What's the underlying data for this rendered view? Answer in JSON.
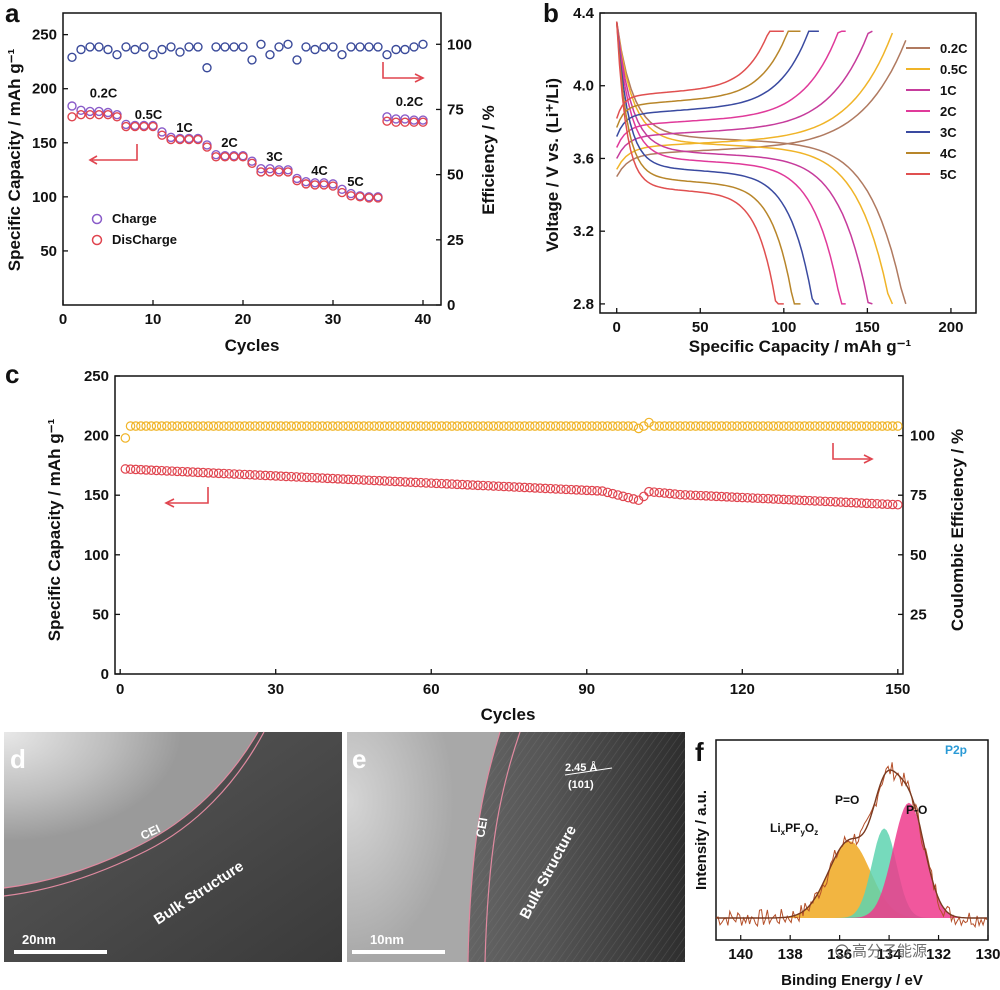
{
  "chart_data": [
    {
      "panel": "a",
      "type": "scatter",
      "xlabel": "Cycles",
      "ylabel": "Specific Capacity / mAh g⁻¹",
      "y2label": "Efficiency / %",
      "xlim": [
        0,
        42
      ],
      "ylim": [
        0,
        270
      ],
      "y2lim": [
        0,
        112
      ],
      "xticks": [
        0,
        10,
        20,
        30,
        40
      ],
      "yticks": [
        50,
        100,
        150,
        200,
        250
      ],
      "y2ticks": [
        0,
        25,
        50,
        75,
        100
      ],
      "legend": [
        "Charge",
        "DisCharge"
      ],
      "rate_labels": [
        {
          "text": "0.2C",
          "x": 4.5,
          "y": 192
        },
        {
          "text": "0.5C",
          "x": 9.5,
          "y": 172
        },
        {
          "text": "1C",
          "x": 13.5,
          "y": 160
        },
        {
          "text": "2C",
          "x": 18.5,
          "y": 146
        },
        {
          "text": "3C",
          "x": 23.5,
          "y": 133
        },
        {
          "text": "4C",
          "x": 28.5,
          "y": 120
        },
        {
          "text": "5C",
          "x": 32.5,
          "y": 110
        },
        {
          "text": "0.2C",
          "x": 38.5,
          "y": 184
        }
      ],
      "series": [
        {
          "name": "Charge",
          "color": "#8a5cc9",
          "x": [
            1,
            2,
            3,
            4,
            5,
            6,
            7,
            8,
            9,
            10,
            11,
            12,
            13,
            14,
            15,
            16,
            17,
            18,
            19,
            20,
            21,
            22,
            23,
            24,
            25,
            26,
            27,
            28,
            29,
            30,
            31,
            32,
            33,
            34,
            35,
            36,
            37,
            38,
            39,
            40
          ],
          "values": [
            184,
            180,
            179,
            179,
            178,
            176,
            167,
            166,
            166,
            166,
            160,
            155,
            154,
            154,
            154,
            148,
            139,
            138,
            138,
            138,
            133,
            126,
            126,
            125,
            125,
            117,
            114,
            113,
            113,
            112,
            107,
            103,
            101,
            100,
            100,
            174,
            172,
            172,
            171,
            171
          ]
        },
        {
          "name": "DisCharge",
          "color": "#e0454f",
          "x": [
            1,
            2,
            3,
            4,
            5,
            6,
            7,
            8,
            9,
            10,
            11,
            12,
            13,
            14,
            15,
            16,
            17,
            18,
            19,
            20,
            21,
            22,
            23,
            24,
            25,
            26,
            27,
            28,
            29,
            30,
            31,
            32,
            33,
            34,
            35,
            36,
            37,
            38,
            39,
            40
          ],
          "values": [
            174,
            176,
            176,
            176,
            176,
            174,
            165,
            165,
            165,
            165,
            157,
            153,
            153,
            153,
            153,
            146,
            137,
            137,
            137,
            137,
            131,
            123,
            123,
            123,
            123,
            115,
            112,
            111,
            111,
            110,
            104,
            101,
            100,
            99,
            99,
            170,
            169,
            169,
            169,
            169
          ]
        },
        {
          "name": "Efficiency",
          "color": "#3a4a9a",
          "axis": "right",
          "x": [
            1,
            2,
            3,
            4,
            5,
            6,
            7,
            8,
            9,
            10,
            11,
            12,
            13,
            14,
            15,
            16,
            17,
            18,
            19,
            20,
            21,
            22,
            23,
            24,
            25,
            26,
            27,
            28,
            29,
            30,
            31,
            32,
            33,
            34,
            35,
            36,
            37,
            38,
            39,
            40
          ],
          "values": [
            95,
            98,
            99,
            99,
            98,
            96,
            99,
            98,
            99,
            96,
            98,
            99,
            97,
            99,
            99,
            91,
            99,
            99,
            99,
            99,
            94,
            100,
            96,
            99,
            100,
            94,
            99,
            98,
            99,
            99,
            96,
            99,
            99,
            99,
            99,
            96,
            98,
            98,
            99,
            100
          ]
        }
      ]
    },
    {
      "panel": "b",
      "type": "line",
      "xlabel": "Specific Capacity / mAh g⁻¹",
      "ylabel": "Voltage / V vs. (Li⁺/Li)",
      "xlim": [
        -10,
        215
      ],
      "ylim": [
        2.75,
        4.4
      ],
      "xticks": [
        0,
        50,
        100,
        150,
        200
      ],
      "yticks": [
        2.8,
        3.2,
        3.6,
        4.0,
        4.4
      ],
      "series": [
        {
          "name": "0.2C",
          "color": "#b07a60",
          "capacity": 173,
          "charge_plateau": 3.62,
          "discharge_plateau": 3.66
        },
        {
          "name": "0.5C",
          "color": "#f0b428",
          "capacity": 165,
          "charge_plateau": 3.66,
          "discharge_plateau": 3.63
        },
        {
          "name": "1C",
          "color": "#c63c9c",
          "capacity": 153,
          "charge_plateau": 3.72,
          "discharge_plateau": 3.58
        },
        {
          "name": "2C",
          "color": "#e03a9a",
          "capacity": 137,
          "charge_plateau": 3.78,
          "discharge_plateau": 3.54
        },
        {
          "name": "3C",
          "color": "#3a4aa0",
          "capacity": 121,
          "charge_plateau": 3.84,
          "discharge_plateau": 3.49
        },
        {
          "name": "4C",
          "color": "#b8862a",
          "capacity": 110,
          "charge_plateau": 3.89,
          "discharge_plateau": 3.43
        },
        {
          "name": "5C",
          "color": "#e05050",
          "capacity": 100,
          "charge_plateau": 3.94,
          "discharge_plateau": 3.38
        }
      ]
    },
    {
      "panel": "c",
      "type": "scatter",
      "xlabel": "Cycles",
      "ylabel": "Specific Capacity / mAh g⁻¹",
      "y2label": "Coulombic Efficiency / %",
      "xlim": [
        -1,
        151
      ],
      "ylim": [
        0,
        250
      ],
      "y2lim": [
        0,
        125
      ],
      "xticks": [
        0,
        30,
        60,
        90,
        120,
        150
      ],
      "yticks": [
        0,
        50,
        100,
        150,
        200,
        250
      ],
      "y2ticks": [
        25,
        50,
        75,
        100
      ],
      "series": [
        {
          "name": "Specific Capacity",
          "color": "#e0454f",
          "start": 172,
          "end": 142,
          "dip_cycle": 100,
          "dip_value": 149
        },
        {
          "name": "Coulombic Efficiency",
          "color": "#f0b428",
          "axis": "right",
          "first": 99,
          "level": 104
        }
      ]
    },
    {
      "panel": "f",
      "type": "line",
      "title": "P2p",
      "xlabel": "Binding Energy / eV",
      "ylabel": "Intensity / a.u.",
      "xlim": [
        141,
        130
      ],
      "xticks": [
        140,
        138,
        136,
        134,
        132,
        130
      ],
      "peaks": [
        {
          "name": "LixPFyOz",
          "center": 135.6,
          "height": 0.48,
          "width": 1.2,
          "color": "#f0a820"
        },
        {
          "name": "P=O",
          "center": 134.2,
          "height": 0.56,
          "width": 0.7,
          "color": "#5ed4b0"
        },
        {
          "name": "P-O",
          "center": 133.2,
          "height": 0.72,
          "width": 0.9,
          "color": "#ee3a8c"
        }
      ]
    }
  ],
  "panels": {
    "a": {
      "letter": "a",
      "arrow_left": "←",
      "arrow_right": "→"
    },
    "b": {
      "letter": "b",
      "li_label": "Li⁺/Li"
    },
    "c": {
      "letter": "c"
    },
    "d": {
      "letter": "d",
      "cei": "CEI",
      "bulk": "Bulk Structure",
      "scale": "20nm"
    },
    "e": {
      "letter": "e",
      "cei": "CEI",
      "bulk": "Bulk Structure",
      "lattice": "2.45 Å",
      "plane": "(101)",
      "scale": "10nm"
    },
    "f": {
      "letter": "f",
      "title": "P2p",
      "peak1": "Li",
      "peak1_sub1": "x",
      "peak1_mid1": "PF",
      "peak1_sub2": "y",
      "peak1_mid2": "O",
      "peak1_sub3": "z",
      "peak2": "P=O",
      "peak3": "P-O"
    }
  },
  "watermark": {
    "text": "高分子能源"
  },
  "colors": {
    "axis": "#111111",
    "tem_bg_d": "#5a5a5a",
    "tem_bg_e": "#6a6a6a",
    "cei_line": "#e08aa0"
  }
}
